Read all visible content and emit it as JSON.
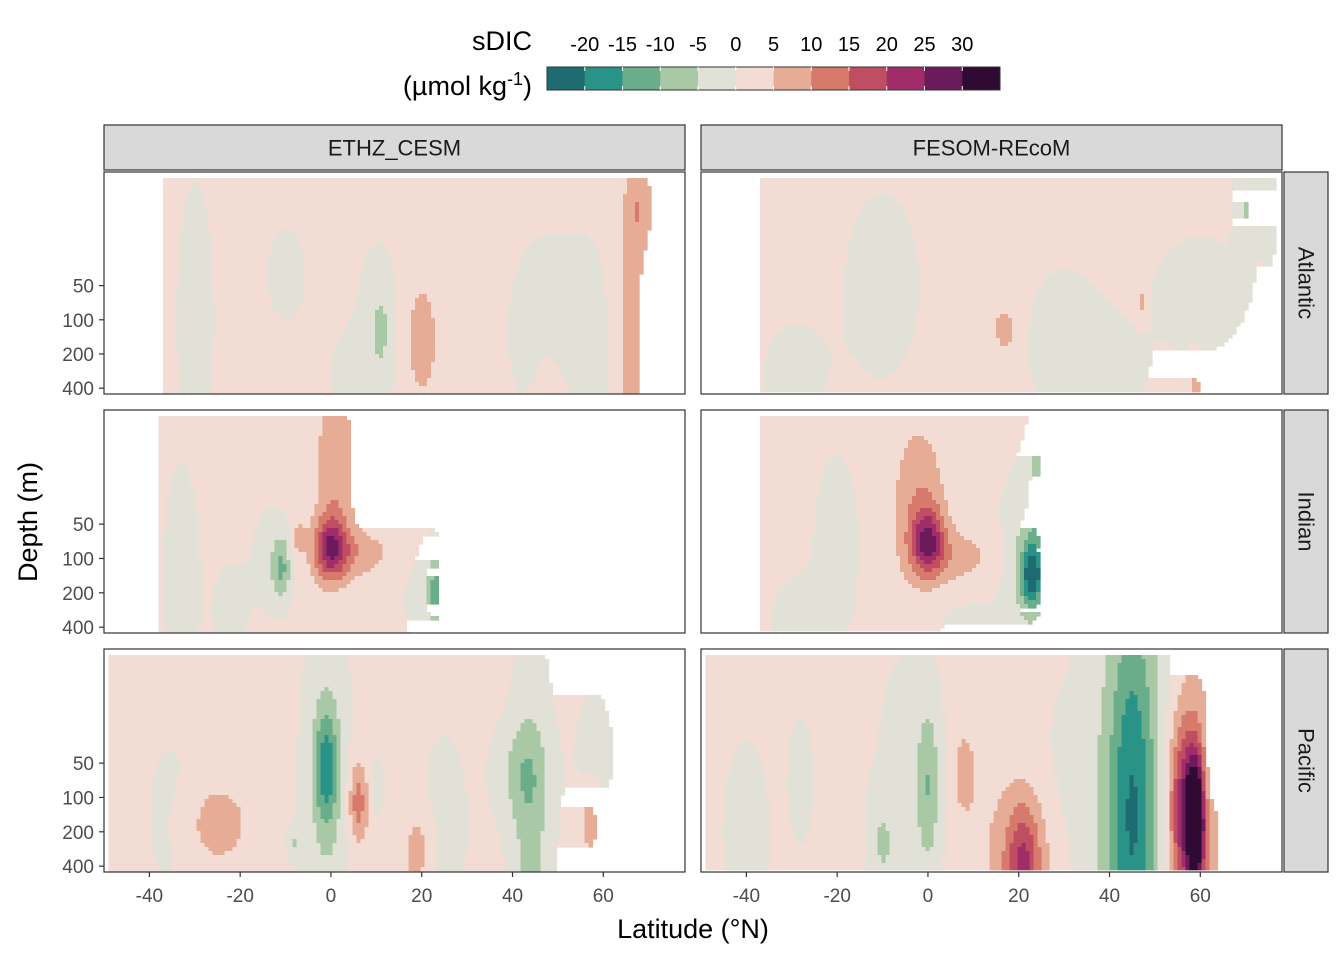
{
  "chart_data": {
    "type": "heatmap",
    "title": "",
    "xlabel": "Latitude (°N)",
    "ylabel": "Depth (m)",
    "legend": {
      "title_line1": "sDIC",
      "title_line2_prefix": "(µmol kg",
      "title_line2_sup": "-1",
      "title_line2_suffix": ")",
      "placement": "top",
      "breaks": [
        -20,
        -15,
        -10,
        -5,
        0,
        5,
        10,
        15,
        20,
        25,
        30
      ],
      "break_labels": [
        "-20",
        "-15",
        "-10",
        "-5",
        "0",
        "5",
        "10",
        "15",
        "20",
        "25",
        "30"
      ],
      "colors": [
        "#1f6b72",
        "#2a9387",
        "#69ad8a",
        "#a9c8a6",
        "#e1e1d7",
        "#f2dcd3",
        "#e6ac95",
        "#d77a6b",
        "#c04e63",
        "#a02d6a",
        "#6b1a5c",
        "#2f0a33"
      ]
    },
    "x_ticks": [
      -40,
      -20,
      0,
      20,
      40,
      60
    ],
    "x_tick_labels": [
      "-40",
      "-20",
      "0",
      "20",
      "40",
      "60"
    ],
    "xlim": [
      -50,
      78
    ],
    "y_ticks": [
      50,
      100,
      200,
      400
    ],
    "y_tick_labels": [
      "50",
      "100",
      "200",
      "400"
    ],
    "ylim": [
      450,
      5
    ],
    "y_scale": "log",
    "columns": [
      "ETHZ_CESM",
      "FESOM-REcoM"
    ],
    "rows": [
      "Atlantic",
      "Indian",
      "Pacific"
    ],
    "panels": [
      {
        "model": "ETHZ_CESM",
        "basin": "Atlantic",
        "lat_range": [
          -37,
          78
        ],
        "depth_max": 450,
        "features": [
          {
            "lat": 20,
            "depth": 150,
            "value": 7,
            "wlat": 2.5,
            "wlog": 0.38
          },
          {
            "lat": 66,
            "depth": 150,
            "value": 7,
            "wlat": 2.0,
            "wlog": 0.9
          },
          {
            "lat": 68,
            "depth": 10,
            "value": 7,
            "wlat": 2.0,
            "wlog": 0.3
          },
          {
            "lat": 11,
            "depth": 120,
            "value": -6,
            "wlat": 1.5,
            "wlog": 0.25
          },
          {
            "lat": 10,
            "depth": 90,
            "value": -2,
            "wlat": 4.0,
            "wlog": 0.6
          },
          {
            "lat": 42,
            "depth": 180,
            "value": -2,
            "wlat": 2.0,
            "wlog": 0.3
          },
          {
            "lat": -30,
            "depth": 100,
            "value": -2,
            "wlat": 4.0,
            "wlog": 1.2
          },
          {
            "lat": 5,
            "depth": 300,
            "value": -2,
            "wlat": 5.0,
            "wlog": 0.3
          },
          {
            "lat": -10,
            "depth": 40,
            "value": -2,
            "wlat": 4.0,
            "wlog": 0.4
          },
          {
            "lat": 47,
            "depth": 60,
            "value": -2,
            "wlat": 6.0,
            "wlog": 0.5
          },
          {
            "lat": 57,
            "depth": 200,
            "value": -2,
            "wlat": 4.0,
            "wlog": 0.8
          }
        ]
      },
      {
        "model": "FESOM-REcoM",
        "basin": "Atlantic",
        "lat_range": [
          -37,
          77
        ],
        "depth_max": 430,
        "features": [
          {
            "lat": 17,
            "depth": 120,
            "value": 7,
            "wlat": 1.8,
            "wlog": 0.15
          },
          {
            "lat": 47,
            "depth": 70,
            "value": 6,
            "wlat": 0.8,
            "wlog": 0.1
          },
          {
            "lat": 59,
            "depth": 400,
            "value": 6,
            "wlat": 0.8,
            "wlog": 0.15
          },
          {
            "lat": 70,
            "depth": 10,
            "value": -6,
            "wlat": 1.5,
            "wlog": 0.3
          },
          {
            "lat": 75,
            "depth": 10,
            "value": -6,
            "wlat": 1.2,
            "wlog": 0.25
          },
          {
            "lat": -10,
            "depth": 50,
            "value": -2,
            "wlat": 8.0,
            "wlog": 0.8
          },
          {
            "lat": 30,
            "depth": 150,
            "value": -2,
            "wlat": 8.0,
            "wlog": 0.6
          },
          {
            "lat": 60,
            "depth": 60,
            "value": -2,
            "wlat": 10.0,
            "wlog": 0.5
          },
          {
            "lat": -30,
            "depth": 300,
            "value": -2,
            "wlat": 6.0,
            "wlog": 0.4
          },
          {
            "lat": 40,
            "depth": 350,
            "value": -2,
            "wlat": 6.0,
            "wlog": 0.3
          }
        ]
      },
      {
        "model": "ETHZ_CESM",
        "basin": "Indian",
        "lat_range": [
          -38,
          24
        ],
        "depth_max": 450,
        "features": [
          {
            "lat": 0,
            "depth": 80,
            "value": 20,
            "wlat": 2.5,
            "wlog": 0.2
          },
          {
            "lat": 1,
            "depth": 15,
            "value": 8,
            "wlat": 3.0,
            "wlog": 0.5
          },
          {
            "lat": 5,
            "depth": 90,
            "value": 7,
            "wlat": 6.0,
            "wlog": 0.15
          },
          {
            "lat": -7,
            "depth": 65,
            "value": 6,
            "wlat": 1.0,
            "wlog": 0.1
          },
          {
            "lat": -11,
            "depth": 120,
            "value": -12,
            "wlat": 1.5,
            "wlog": 0.2
          },
          {
            "lat": 23,
            "depth": 190,
            "value": -12,
            "wlat": 1.5,
            "wlog": 0.2
          },
          {
            "lat": -14,
            "depth": 100,
            "value": -2,
            "wlat": 3.0,
            "wlog": 0.4
          },
          {
            "lat": 20,
            "depth": 200,
            "value": -2,
            "wlat": 4.0,
            "wlog": 0.5
          },
          {
            "lat": -33,
            "depth": 150,
            "value": -2,
            "wlat": 4.0,
            "wlog": 1.0
          },
          {
            "lat": -22,
            "depth": 300,
            "value": -2,
            "wlat": 3.0,
            "wlog": 0.4
          }
        ]
      },
      {
        "model": "FESOM-REcoM",
        "basin": "Indian",
        "lat_range": [
          -37,
          25
        ],
        "depth_max": 430,
        "features": [
          {
            "lat": 0,
            "depth": 70,
            "value": 20,
            "wlat": 2.5,
            "wlog": 0.2
          },
          {
            "lat": -2,
            "depth": 30,
            "value": 8,
            "wlat": 4.0,
            "wlog": 0.45
          },
          {
            "lat": 6,
            "depth": 100,
            "value": 7,
            "wlat": 7.0,
            "wlog": 0.2
          },
          {
            "lat": 23,
            "depth": 140,
            "value": -20,
            "wlat": 1.8,
            "wlog": 0.2
          },
          {
            "lat": 22,
            "depth": 100,
            "value": -7,
            "wlat": 3.5,
            "wlog": 0.5
          },
          {
            "lat": 24,
            "depth": 20,
            "value": -6,
            "wlat": 1.5,
            "wlog": 0.4
          },
          {
            "lat": -20,
            "depth": 80,
            "value": -2,
            "wlat": 5.0,
            "wlog": 0.8
          },
          {
            "lat": 8,
            "depth": 250,
            "value": -2,
            "wlat": 7.0,
            "wlog": 0.5
          },
          {
            "lat": -30,
            "depth": 350,
            "value": -2,
            "wlat": 4.0,
            "wlog": 0.3
          }
        ]
      },
      {
        "model": "ETHZ_CESM",
        "basin": "Pacific",
        "lat_range": [
          -49,
          65
        ],
        "depth_max": 450,
        "features": [
          {
            "lat": -1,
            "depth": 55,
            "value": -15,
            "wlat": 1.8,
            "wlog": 0.35
          },
          {
            "lat": -1,
            "depth": 80,
            "value": -6,
            "wlat": 3.5,
            "wlog": 1.0
          },
          {
            "lat": 6,
            "depth": 110,
            "value": 12,
            "wlat": 1.5,
            "wlog": 0.25
          },
          {
            "lat": 19,
            "depth": 300,
            "value": 7,
            "wlat": 2.0,
            "wlog": 0.25
          },
          {
            "lat": -25,
            "depth": 170,
            "value": 7,
            "wlat": 5.0,
            "wlog": 0.25
          },
          {
            "lat": 57,
            "depth": 170,
            "value": 7,
            "wlat": 1.5,
            "wlog": 0.2
          },
          {
            "lat": 10,
            "depth": 80,
            "value": -6,
            "wlat": 1.0,
            "wlog": 0.15
          },
          {
            "lat": 44,
            "depth": 230,
            "value": -8,
            "wlat": 3.0,
            "wlog": 1.0
          },
          {
            "lat": 42,
            "depth": 60,
            "value": -6,
            "wlat": 4.0,
            "wlog": 0.3
          },
          {
            "lat": -8,
            "depth": 250,
            "value": -6,
            "wlat": 1.0,
            "wlog": 0.1
          },
          {
            "lat": -35,
            "depth": 150,
            "value": -2,
            "wlat": 5.0,
            "wlog": 0.6
          },
          {
            "lat": 58,
            "depth": 40,
            "value": -2,
            "wlat": 4.0,
            "wlog": 0.5
          },
          {
            "lat": 25,
            "depth": 180,
            "value": -2,
            "wlat": 5.0,
            "wlog": 0.8
          }
        ]
      },
      {
        "model": "FESOM-REcoM",
        "basin": "Pacific",
        "lat_range": [
          -49,
          66
        ],
        "depth_max": 430,
        "features": [
          {
            "lat": 59,
            "depth": 170,
            "value": 30,
            "wlat": 1.2,
            "wlog": 0.35
          },
          {
            "lat": 57,
            "depth": 130,
            "value": 20,
            "wlat": 2.5,
            "wlog": 0.5
          },
          {
            "lat": 58,
            "depth": 150,
            "value": 10,
            "wlat": 4.0,
            "wlog": 0.9
          },
          {
            "lat": 21,
            "depth": 380,
            "value": 14,
            "wlat": 2.5,
            "wlog": 0.35
          },
          {
            "lat": 20,
            "depth": 330,
            "value": 7,
            "wlat": 6.0,
            "wlog": 0.5
          },
          {
            "lat": 45,
            "depth": 150,
            "value": -14,
            "wlat": 3.5,
            "wlog": 1.3
          },
          {
            "lat": 45,
            "depth": 120,
            "value": -8,
            "wlat": 7.0,
            "wlog": 1.5
          },
          {
            "lat": 0,
            "depth": 80,
            "value": -10,
            "wlat": 1.8,
            "wlog": 0.5
          },
          {
            "lat": -28,
            "depth": 70,
            "value": -6,
            "wlat": 1.5,
            "wlog": 0.3
          },
          {
            "lat": -10,
            "depth": 250,
            "value": -6,
            "wlat": 2.0,
            "wlog": 0.3
          },
          {
            "lat": 8,
            "depth": 60,
            "value": 6,
            "wlat": 2.0,
            "wlog": 0.3
          },
          {
            "lat": -5,
            "depth": 60,
            "value": -2,
            "wlat": 6.0,
            "wlog": 1.0
          },
          {
            "lat": 62,
            "depth": 50,
            "value": -6,
            "wlat": 1.0,
            "wlog": 0.3
          },
          {
            "lat": 30,
            "depth": 80,
            "value": -2,
            "wlat": 5.0,
            "wlog": 0.6
          },
          {
            "lat": -40,
            "depth": 200,
            "value": -2,
            "wlat": 5.0,
            "wlog": 0.8
          }
        ]
      }
    ],
    "grid": false
  }
}
